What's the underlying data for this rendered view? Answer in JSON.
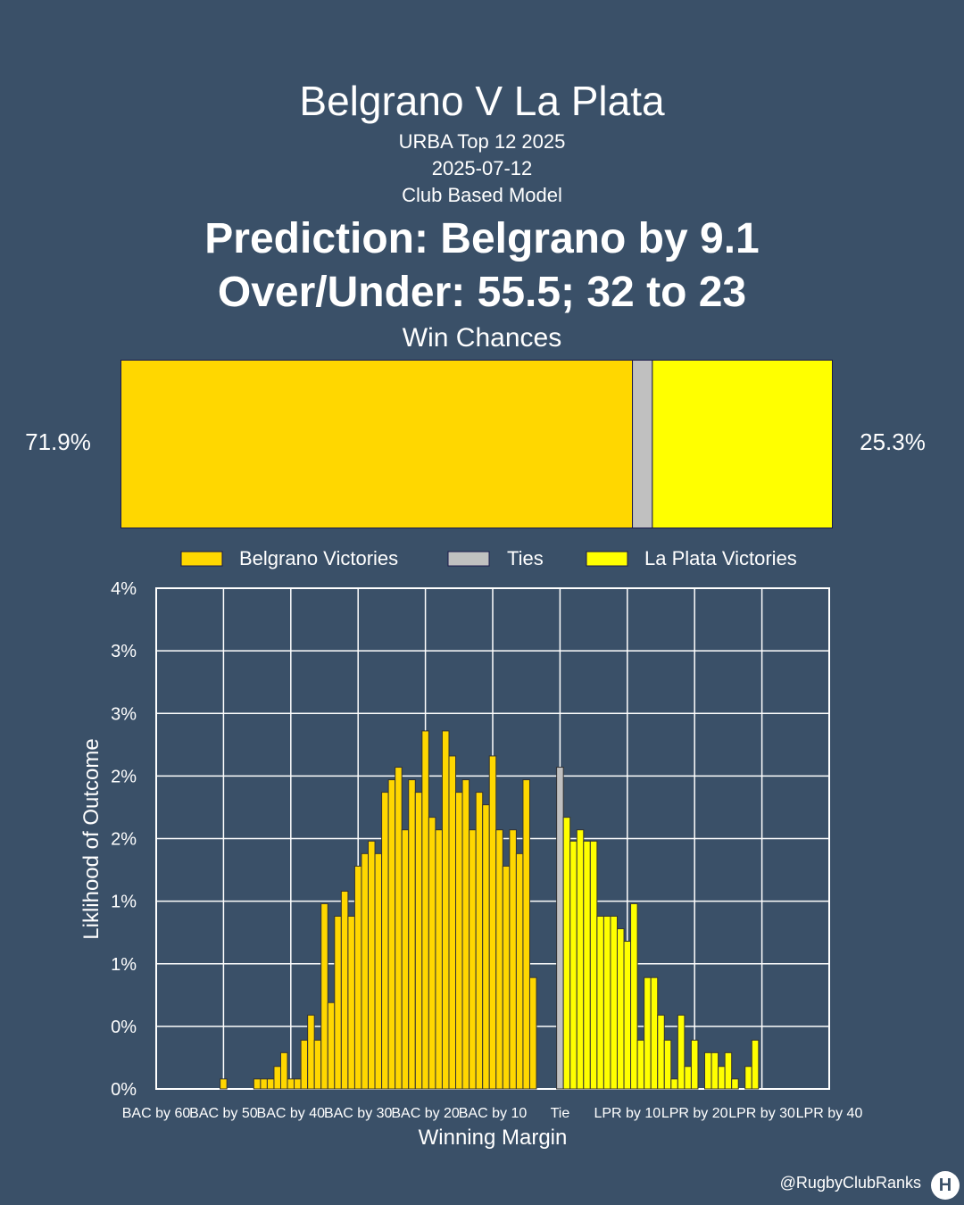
{
  "header": {
    "title": "Belgrano V La Plata",
    "competition": "URBA Top 12 2025",
    "date": "2025-07-12",
    "model": "Club Based Model",
    "prediction": "Prediction: Belgrano by 9.1",
    "over_under": "Over/Under: 55.5; 32 to 23"
  },
  "win_chances": {
    "title": "Win Chances",
    "home_pct": 71.9,
    "tie_pct": 2.8,
    "away_pct": 25.3,
    "home_label": "71.9%",
    "away_label": "25.3%",
    "colors": {
      "home": "#FFD700",
      "tie": "#C0C0C0",
      "away": "#FFFF00"
    }
  },
  "chart_data": {
    "type": "bar",
    "xlabel": "Winning Margin",
    "ylabel": "Liklihood of Outcome",
    "ylim": [
      0,
      4
    ],
    "yticks": [
      0,
      0.5,
      1,
      1.5,
      2,
      2.5,
      3,
      3.5,
      4
    ],
    "ytick_labels": [
      "0%",
      "0%",
      "1%",
      "1%",
      "2%",
      "2%",
      "3%",
      "3%",
      "4%"
    ],
    "xlim": [
      -60,
      40
    ],
    "xticks": [
      -60,
      -50,
      -40,
      -30,
      -20,
      -10,
      0,
      10,
      20,
      30,
      40
    ],
    "xtick_labels": [
      "BAC by 60",
      "BAC by 50",
      "BAC by 40",
      "BAC by 30",
      "BAC by 20",
      "BAC by 10",
      "Tie",
      "LPR by 10",
      "LPR by 20",
      "LPR by 30",
      "LPR by 40"
    ],
    "grid": true,
    "legend": {
      "placement": "top",
      "entries": [
        {
          "label": "Belgrano Victories",
          "color": "#FFD700"
        },
        {
          "label": "Ties",
          "color": "#C0C0C0"
        },
        {
          "label": "La Plata Victories",
          "color": "#FFFF00"
        }
      ]
    },
    "series": [
      {
        "name": "Belgrano Victories",
        "x": [
          -50,
          -49,
          -48,
          -47,
          -46,
          -45,
          -44,
          -43,
          -42,
          -41,
          -40,
          -39,
          -38,
          -37,
          -36,
          -35,
          -34,
          -33,
          -32,
          -31,
          -30,
          -29,
          -28,
          -27,
          -26,
          -25,
          -24,
          -23,
          -22,
          -21,
          -20,
          -19,
          -18,
          -17,
          -16,
          -15,
          -14,
          -13,
          -12,
          -11,
          -10,
          -9,
          -8,
          -7,
          -6,
          -5,
          -4,
          -3,
          -2,
          -1
        ],
        "values": [
          0.08,
          0,
          0,
          0,
          0,
          0.08,
          0.08,
          0.08,
          0.18,
          0.29,
          0.08,
          0.08,
          0.39,
          0.59,
          0.39,
          1.48,
          0.69,
          1.38,
          1.58,
          1.38,
          1.78,
          1.88,
          1.98,
          1.88,
          2.37,
          2.47,
          2.57,
          2.07,
          2.47,
          2.37,
          2.86,
          2.17,
          2.07,
          2.86,
          2.66,
          2.37,
          2.47,
          2.07,
          2.37,
          2.27,
          2.66,
          2.07,
          1.78,
          2.07,
          1.88,
          2.47,
          0.89,
          0,
          0,
          0
        ]
      },
      {
        "name": "Ties",
        "x": [
          0
        ],
        "values": [
          2.57
        ]
      },
      {
        "name": "La Plata Victories",
        "x": [
          1,
          2,
          3,
          4,
          5,
          6,
          7,
          8,
          9,
          10,
          11,
          12,
          13,
          14,
          15,
          16,
          17,
          18,
          19,
          20,
          21,
          22,
          23,
          24,
          25,
          26,
          27,
          28,
          29,
          30
        ],
        "values": [
          2.17,
          1.98,
          2.07,
          1.98,
          1.98,
          1.38,
          1.38,
          1.38,
          1.28,
          1.18,
          1.48,
          0.39,
          0.89,
          0.89,
          0.59,
          0.39,
          0.08,
          0.59,
          0.18,
          0.39,
          0,
          0.29,
          0.29,
          0.18,
          0.29,
          0.08,
          0,
          0.18,
          0.39,
          0
        ],
        "note_omit": null
      }
    ]
  },
  "credit": "@RugbyClubRanks",
  "logo_glyph": "H"
}
